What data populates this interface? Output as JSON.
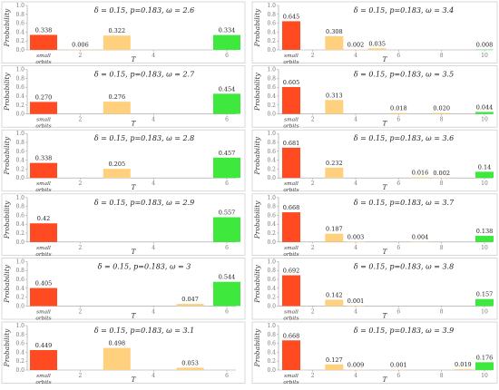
{
  "colors": {
    "small_orbits": "#ff4a22",
    "mid": "#ffd07e",
    "top": "#3ee83c"
  },
  "common": {
    "ylabel": "Probability",
    "xlabel": "T",
    "small_label_line1": "small",
    "small_label_line2": "orbits",
    "yticks": [
      "0.0",
      "0.2",
      "0.4",
      "0.6",
      "0.8",
      "1.0"
    ]
  },
  "chart_data": [
    {
      "type": "bar",
      "title": "δ = 0.15, p=0.183, ω = 2.6",
      "xticks": [
        "2",
        "4",
        "6"
      ],
      "ylim": [
        0,
        1
      ],
      "bars": [
        {
          "pos": "small",
          "value": 0.338,
          "label": "0.338",
          "color": "red"
        },
        {
          "pos": 2,
          "value": 0.006,
          "label": "0.006",
          "color": "orange"
        },
        {
          "pos": 3,
          "value": 0.322,
          "label": "0.322",
          "color": "orange"
        },
        {
          "pos": 6,
          "value": 0.334,
          "label": "0.334",
          "color": "green"
        }
      ]
    },
    {
      "type": "bar",
      "title": "δ = 0.15, p=0.183, ω = 2.7",
      "xticks": [
        "2",
        "4",
        "6"
      ],
      "ylim": [
        0,
        1
      ],
      "bars": [
        {
          "pos": "small",
          "value": 0.27,
          "label": "0.270",
          "color": "red"
        },
        {
          "pos": 3,
          "value": 0.276,
          "label": "0.276",
          "color": "orange"
        },
        {
          "pos": 6,
          "value": 0.454,
          "label": "0.454",
          "color": "green"
        }
      ]
    },
    {
      "type": "bar",
      "title": "δ = 0.15, p=0.183, ω = 2.8",
      "xticks": [
        "2",
        "4",
        "6"
      ],
      "ylim": [
        0,
        1
      ],
      "bars": [
        {
          "pos": "small",
          "value": 0.338,
          "label": "0.338",
          "color": "red"
        },
        {
          "pos": 3,
          "value": 0.205,
          "label": "0.205",
          "color": "orange"
        },
        {
          "pos": 6,
          "value": 0.457,
          "label": "0.457",
          "color": "green"
        }
      ]
    },
    {
      "type": "bar",
      "title": "δ = 0.15, p=0.183, ω = 2.9",
      "xticks": [
        "2",
        "4",
        "6"
      ],
      "ylim": [
        0,
        1
      ],
      "bars": [
        {
          "pos": "small",
          "value": 0.42,
          "label": "0.42",
          "color": "red"
        },
        {
          "pos": 6,
          "value": 0.557,
          "label": "0.557",
          "color": "green"
        }
      ]
    },
    {
      "type": "bar",
      "title": "δ = 0.15, p=0.183, ω = 3",
      "xticks": [
        "2",
        "4",
        "6"
      ],
      "ylim": [
        0,
        1
      ],
      "bars": [
        {
          "pos": "small",
          "value": 0.405,
          "label": "0.405",
          "color": "red"
        },
        {
          "pos": 5,
          "value": 0.047,
          "label": "0.047",
          "color": "orange"
        },
        {
          "pos": 6,
          "value": 0.544,
          "label": "0.544",
          "color": "green"
        }
      ]
    },
    {
      "type": "bar",
      "title": "δ = 0.15, p=0.183, ω = 3.1",
      "xticks": [
        "2",
        "4",
        "6"
      ],
      "ylim": [
        0,
        1
      ],
      "bars": [
        {
          "pos": "small",
          "value": 0.449,
          "label": "0.449",
          "color": "red"
        },
        {
          "pos": 3,
          "value": 0.498,
          "label": "0.498",
          "color": "orange"
        },
        {
          "pos": 5,
          "value": 0.053,
          "label": "0.053",
          "color": "orange"
        }
      ]
    },
    {
      "type": "bar",
      "title": "δ = 0.15, p=0.183, ω = 3.4",
      "xticks": [
        "2",
        "4",
        "6",
        "8",
        "10"
      ],
      "ylim": [
        0,
        1
      ],
      "bars": [
        {
          "pos": "small",
          "value": 0.645,
          "label": "0.645",
          "color": "red"
        },
        {
          "pos": 3,
          "value": 0.308,
          "label": "0.308",
          "color": "orange"
        },
        {
          "pos": 4,
          "value": 0.002,
          "label": "0.002",
          "color": "orange"
        },
        {
          "pos": 5,
          "value": 0.035,
          "label": "0.035",
          "color": "orange"
        },
        {
          "pos": 10,
          "value": 0.008,
          "label": "0.008",
          "color": "green"
        }
      ]
    },
    {
      "type": "bar",
      "title": "δ = 0.15, p=0.183, ω = 3.5",
      "xticks": [
        "2",
        "4",
        "6",
        "8",
        "10"
      ],
      "ylim": [
        0,
        1
      ],
      "bars": [
        {
          "pos": "small",
          "value": 0.605,
          "label": "0.605",
          "color": "red"
        },
        {
          "pos": 3,
          "value": 0.313,
          "label": "0.313",
          "color": "orange"
        },
        {
          "pos": 6,
          "value": 0.018,
          "label": "0.018",
          "color": "orange"
        },
        {
          "pos": 8,
          "value": 0.02,
          "label": "0.020",
          "color": "orange"
        },
        {
          "pos": 10,
          "value": 0.044,
          "label": "0.044",
          "color": "green"
        }
      ]
    },
    {
      "type": "bar",
      "title": "δ = 0.15, p=0.183, ω = 3.6",
      "xticks": [
        "2",
        "4",
        "6",
        "8",
        "10"
      ],
      "ylim": [
        0,
        1
      ],
      "bars": [
        {
          "pos": "small",
          "value": 0.681,
          "label": "0.681",
          "color": "red"
        },
        {
          "pos": 3,
          "value": 0.232,
          "label": "0.232",
          "color": "orange"
        },
        {
          "pos": 7,
          "value": 0.016,
          "label": "0.016",
          "color": "orange"
        },
        {
          "pos": 8,
          "value": 0.002,
          "label": "0.002",
          "color": "orange"
        },
        {
          "pos": 10,
          "value": 0.14,
          "label": "0.14",
          "color": "green"
        }
      ]
    },
    {
      "type": "bar",
      "title": "δ = 0.15, p=0.183, ω = 3.7",
      "xticks": [
        "2",
        "4",
        "6",
        "8",
        "10"
      ],
      "ylim": [
        0,
        1
      ],
      "bars": [
        {
          "pos": "small",
          "value": 0.668,
          "label": "0.668",
          "color": "red"
        },
        {
          "pos": 3,
          "value": 0.187,
          "label": "0.187",
          "color": "orange"
        },
        {
          "pos": 4,
          "value": 0.003,
          "label": "0.003",
          "color": "orange"
        },
        {
          "pos": 7,
          "value": 0.004,
          "label": "0.004",
          "color": "orange"
        },
        {
          "pos": 10,
          "value": 0.138,
          "label": "0.138",
          "color": "green"
        }
      ]
    },
    {
      "type": "bar",
      "title": "δ = 0.15, p=0.183, ω = 3.8",
      "xticks": [
        "2",
        "4",
        "6",
        "8",
        "10"
      ],
      "ylim": [
        0,
        1
      ],
      "bars": [
        {
          "pos": "small",
          "value": 0.692,
          "label": "0.692",
          "color": "red"
        },
        {
          "pos": 3,
          "value": 0.142,
          "label": "0.142",
          "color": "orange"
        },
        {
          "pos": 4,
          "value": 0.001,
          "label": "0.001",
          "color": "orange"
        },
        {
          "pos": 10,
          "value": 0.157,
          "label": "0.157",
          "color": "green"
        }
      ]
    },
    {
      "type": "bar",
      "title": "δ = 0.15, p=0.183, ω = 3.9",
      "xticks": [
        "2",
        "4",
        "6",
        "8",
        "10"
      ],
      "ylim": [
        0,
        1
      ],
      "bars": [
        {
          "pos": "small",
          "value": 0.668,
          "label": "0.668",
          "color": "red"
        },
        {
          "pos": 3,
          "value": 0.127,
          "label": "0.127",
          "color": "orange"
        },
        {
          "pos": 4,
          "value": 0.009,
          "label": "0.009",
          "color": "orange"
        },
        {
          "pos": 6,
          "value": 0.001,
          "label": "0.001",
          "color": "orange"
        },
        {
          "pos": 9,
          "value": 0.019,
          "label": "0.019",
          "color": "orange"
        },
        {
          "pos": 10,
          "value": 0.176,
          "label": "0.176",
          "color": "green"
        }
      ]
    }
  ]
}
